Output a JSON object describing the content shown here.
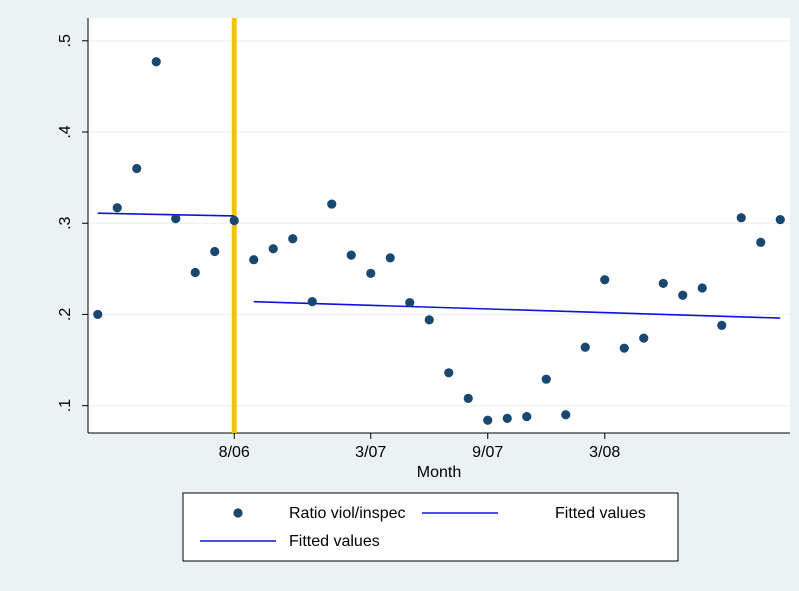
{
  "chart_data": {
    "type": "scatter",
    "title": "",
    "xlabel": "Month",
    "ylabel": "",
    "x_ticks": [
      {
        "x": 8,
        "label": "8/06"
      },
      {
        "x": 15,
        "label": "3/07"
      },
      {
        "x": 21,
        "label": "9/07"
      },
      {
        "x": 27,
        "label": "3/08"
      }
    ],
    "y_ticks": [
      {
        "y": 0.1,
        "label": ".1"
      },
      {
        "y": 0.2,
        "label": ".2"
      },
      {
        "y": 0.3,
        "label": ".3"
      },
      {
        "y": 0.4,
        "label": ".4"
      },
      {
        "y": 0.5,
        "label": ".5"
      }
    ],
    "xlim": [
      0.5,
      36.5
    ],
    "ylim": [
      0.07,
      0.525
    ],
    "grid": true,
    "series": [
      {
        "name": "Ratio viol/inspec",
        "kind": "scatter",
        "color": "#1a476f",
        "x": [
          1,
          2,
          3,
          4,
          5,
          6,
          7,
          8,
          9,
          10,
          11,
          12,
          13,
          14,
          15,
          16,
          17,
          18,
          19,
          20,
          21,
          22,
          23,
          24,
          25,
          26,
          27,
          28,
          29,
          30,
          31,
          32,
          33,
          34,
          35,
          36
        ],
        "y": [
          0.2,
          0.317,
          0.36,
          0.477,
          0.305,
          0.246,
          0.269,
          0.303,
          0.26,
          0.272,
          0.283,
          0.214,
          0.321,
          0.265,
          0.245,
          0.262,
          0.213,
          0.194,
          0.136,
          0.108,
          0.084,
          0.086,
          0.088,
          0.129,
          0.09,
          0.164,
          0.238,
          0.163,
          0.174,
          0.234,
          0.221,
          0.229,
          0.188,
          0.306,
          0.279,
          0.304
        ]
      },
      {
        "name": "Fitted values",
        "kind": "line",
        "color": "#1010e0",
        "x": [
          1,
          8
        ],
        "y": [
          0.311,
          0.308
        ]
      },
      {
        "name": "Fitted values",
        "kind": "line",
        "color": "#1010e0",
        "x": [
          9,
          36
        ],
        "y": [
          0.214,
          0.196
        ]
      }
    ],
    "annotations": [
      {
        "kind": "vertical-line",
        "x": 8,
        "color": "#f5c400"
      }
    ],
    "legend": {
      "placement": "bottom",
      "entries": [
        {
          "label": "Ratio viol/inspec",
          "kind": "marker"
        },
        {
          "label": "Fitted values",
          "kind": "line"
        },
        {
          "label": "Fitted values",
          "kind": "line"
        }
      ]
    }
  }
}
